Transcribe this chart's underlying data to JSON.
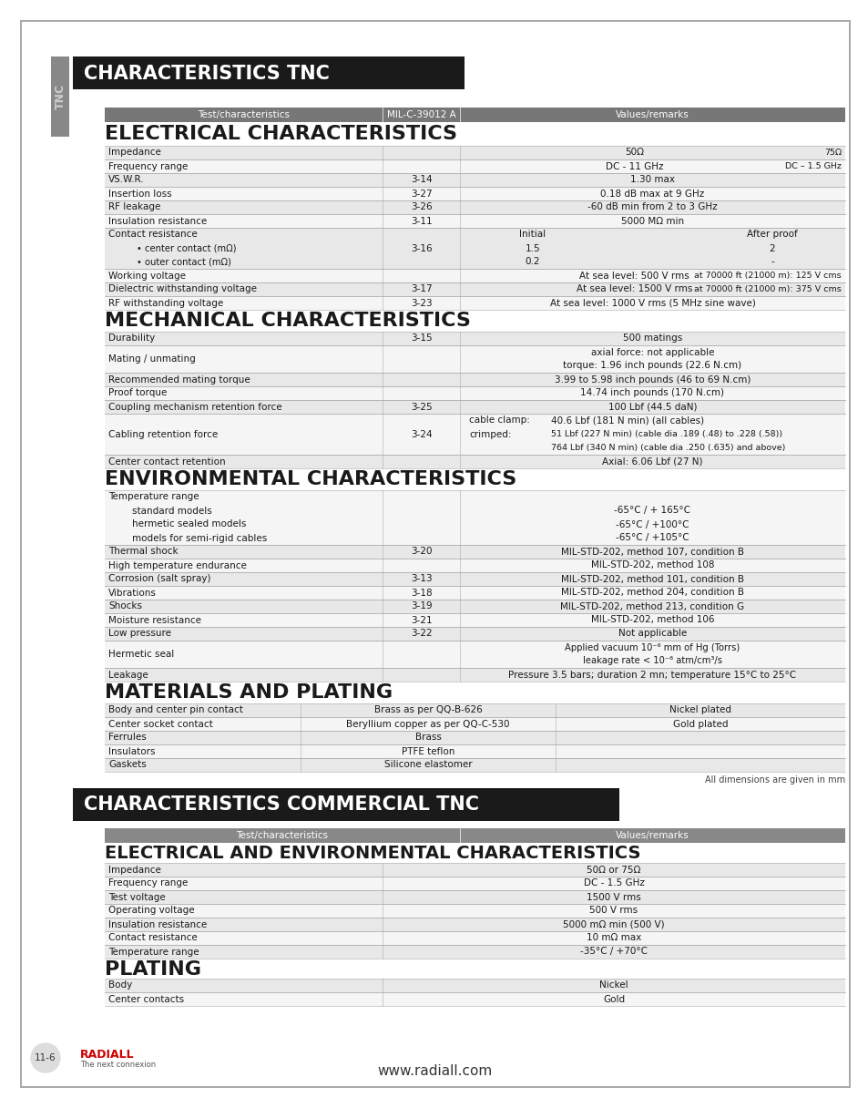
{
  "page_bg": "#ffffff",
  "main_title_bg": "#1a1a1a",
  "main_title_text": "CHARACTERISTICS TNC",
  "main_title_color": "#ffffff",
  "header_row_bg": "#777777",
  "section_title_color": "#1a1a1a",
  "table_line_color": "#aaaaaa",
  "row_alt1": "#e8e8e8",
  "row_alt2": "#f5f5f5",
  "footer_text": "www.radiall.com",
  "page_num": "11-6",
  "dim_note": "All dimensions are given in mm",
  "second_main_title_bg": "#1a1a1a",
  "second_main_title_text": "CHARACTERISTICS COMMERCIAL TNC",
  "second_header_bg": "#888888"
}
